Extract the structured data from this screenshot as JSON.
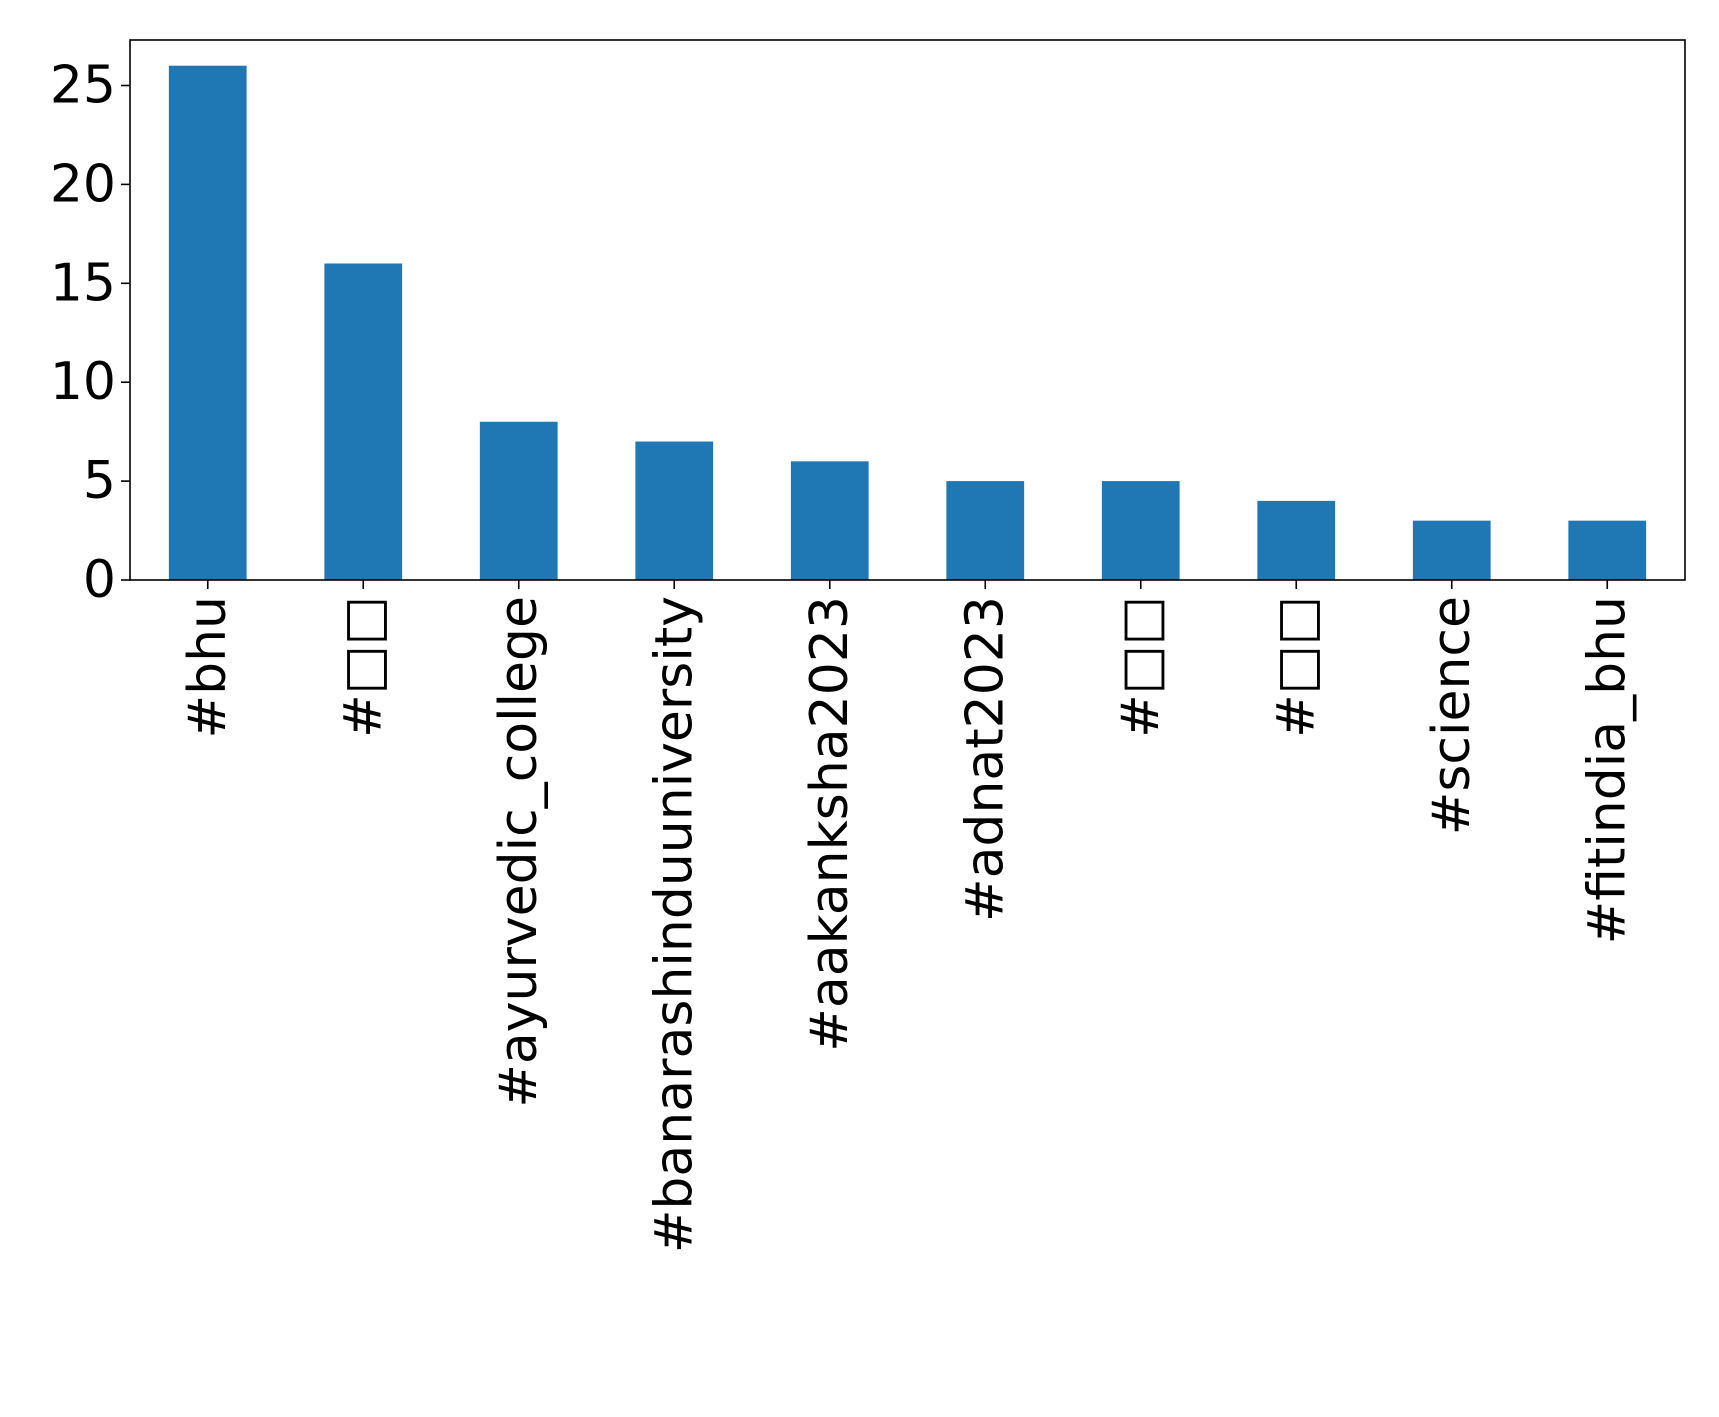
{
  "chart_data": {
    "type": "bar",
    "title": "",
    "xlabel": "",
    "ylabel": "",
    "categories": [
      "#bhu",
      "#□□",
      "#ayurvedic_college",
      "#banarashinduuniversity",
      "#aakanksha2023",
      "#adnat2023",
      "#□□",
      "#□□",
      "#science",
      "#fitindia_bhu"
    ],
    "values": [
      26,
      16,
      8,
      7,
      6,
      5,
      5,
      4,
      3,
      3
    ],
    "ylim": [
      0,
      27.3
    ],
    "yticks": [
      0,
      5,
      10,
      15,
      20,
      25
    ],
    "grid": false,
    "legend": "none",
    "bar_color": "#1f77b4"
  }
}
